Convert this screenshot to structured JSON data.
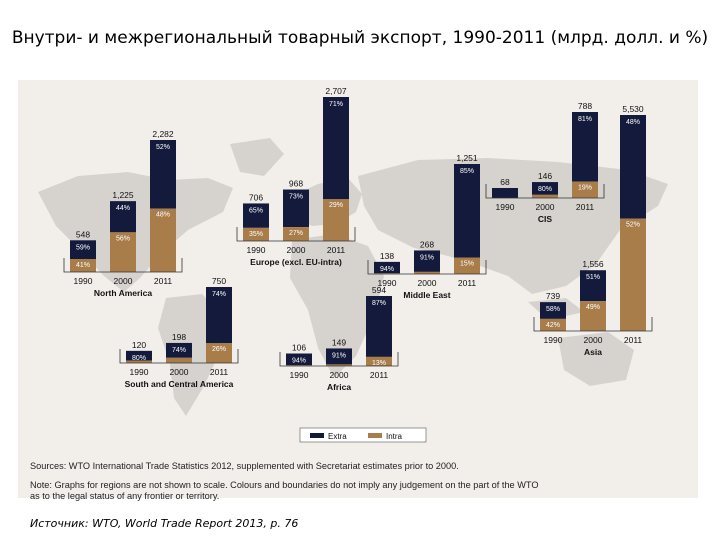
{
  "page": {
    "title": "Внутри-  и межрегиональный товарный экспорт, 1990-2011 (млрд. долл. и %)",
    "source_note": "Sources: WTO International Trade Statistics 2012, supplemented with Secretariat estimates prior to 2000.",
    "note_line1": "Note: Graphs for regions are not shown to scale. Colours and boundaries do not imply any judgement on the part of the WTO",
    "note_line2": "as to the legal status of any frontier or territory.",
    "caption": "Источник: WTO, World Trade Report 2013, р. 76"
  },
  "colors": {
    "extra": "#141a3c",
    "intra": "#a87d4a",
    "map": "#d6d3cf",
    "panel": "#f2efeb"
  },
  "chart_data": {
    "type": "bar",
    "stacked": true,
    "legend": {
      "placement": "bottom",
      "items": [
        {
          "key": "extra",
          "label": "Extra"
        },
        {
          "key": "intra",
          "label": "Intra"
        }
      ]
    },
    "regions": [
      {
        "name": "North America",
        "years": [
          "1990",
          "2000",
          "2011"
        ],
        "totals": [
          "548",
          "1,225",
          "2,282"
        ],
        "extra_pct": [
          "59%",
          "44%",
          "52%"
        ],
        "intra_pct": [
          "41%",
          "56%",
          "48%"
        ]
      },
      {
        "name": "South and Central America",
        "years": [
          "1990",
          "2000",
          "2011"
        ],
        "totals": [
          "120",
          "198",
          "750"
        ],
        "extra_pct": [
          "80%",
          "74%",
          "74%"
        ],
        "intra_pct": [
          "20%",
          "26%",
          "26%"
        ]
      },
      {
        "name": "Europe (excl. EU-intra)",
        "years": [
          "1990",
          "2000",
          "2011"
        ],
        "totals": [
          "706",
          "968",
          "2,707"
        ],
        "extra_pct": [
          "65%",
          "73%",
          "71%"
        ],
        "intra_pct": [
          "35%",
          "27%",
          "29%"
        ]
      },
      {
        "name": "CIS",
        "years": [
          "1990",
          "2000",
          "2011"
        ],
        "totals": [
          "68",
          "146",
          "788"
        ],
        "extra_pct": [
          "",
          "80%",
          "81%"
        ],
        "intra_pct": [
          "",
          "20%",
          "19%"
        ]
      },
      {
        "name": "Middle East",
        "years": [
          "1990",
          "2000",
          "2011"
        ],
        "totals": [
          "138",
          "268",
          "1,251"
        ],
        "extra_pct": [
          "94%",
          "91%",
          "85%"
        ],
        "intra_pct": [
          "6%",
          "9%",
          "15%"
        ]
      },
      {
        "name": "Africa",
        "years": [
          "1990",
          "2000",
          "2011"
        ],
        "totals": [
          "106",
          "149",
          "594"
        ],
        "extra_pct": [
          "94%",
          "91%",
          "87%"
        ],
        "intra_pct": [
          "6%",
          "9%",
          "13%"
        ]
      },
      {
        "name": "Asia",
        "years": [
          "1990",
          "2000",
          "2011"
        ],
        "totals": [
          "739",
          "1,556",
          "5,530"
        ],
        "extra_pct": [
          "58%",
          "51%",
          "48%"
        ],
        "intra_pct": [
          "42%",
          "49%",
          "52%"
        ]
      }
    ]
  }
}
